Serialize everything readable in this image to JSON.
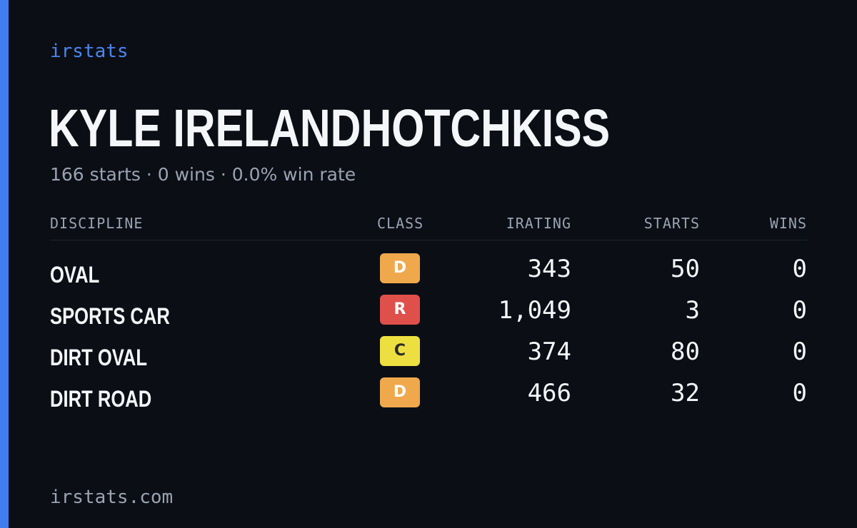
{
  "brand": "irstats",
  "player": {
    "name": "KYLE IRELANDHOTCHKISS",
    "summary": "166 starts · 0 wins · 0.0% win rate"
  },
  "table": {
    "headers": {
      "discipline": "DISCIPLINE",
      "class": "CLASS",
      "irating": "IRATING",
      "starts": "STARTS",
      "wins": "WINS"
    },
    "rows": [
      {
        "discipline": "OVAL",
        "class": "D",
        "class_color": "#f0a84c",
        "class_text_color": "#ffffff",
        "irating": "343",
        "starts": "50",
        "wins": "0"
      },
      {
        "discipline": "SPORTS CAR",
        "class": "R",
        "class_color": "#e0504b",
        "class_text_color": "#ffffff",
        "irating": "1,049",
        "starts": "3",
        "wins": "0"
      },
      {
        "discipline": "DIRT OVAL",
        "class": "C",
        "class_color": "#eddf3f",
        "class_text_color": "#2a2a2a",
        "irating": "374",
        "starts": "80",
        "wins": "0"
      },
      {
        "discipline": "DIRT ROAD",
        "class": "D",
        "class_color": "#f0a84c",
        "class_text_color": "#ffffff",
        "irating": "466",
        "starts": "32",
        "wins": "0"
      }
    ]
  },
  "footer": "irstats.com",
  "colors": {
    "accent": "#3f7df0",
    "background": "#0b0e15"
  }
}
